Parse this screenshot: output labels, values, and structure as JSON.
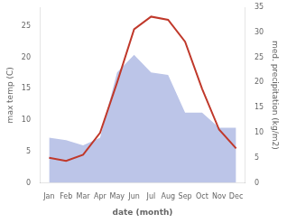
{
  "chart_data": {
    "type": "line",
    "xlabel": "date (month)",
    "ylabel": "max temp (C)",
    "y2label": "med. precipitation (kg/m2)",
    "categories": [
      "Jan",
      "Feb",
      "Mar",
      "Apr",
      "May",
      "Jun",
      "Jul",
      "Aug",
      "Sep",
      "Oct",
      "Nov",
      "Dec"
    ],
    "series": [
      {
        "type": "area",
        "axis": "y2",
        "color": "#bcc5e8",
        "values": [
          9.0,
          8.5,
          7.5,
          9.0,
          22.0,
          25.5,
          22.0,
          21.5,
          14.0,
          14.0,
          11.0,
          11.0
        ]
      },
      {
        "type": "line",
        "color": "#c0392b",
        "values": [
          4.0,
          3.5,
          4.5,
          8.0,
          16.0,
          24.5,
          26.5,
          26.0,
          22.5,
          15.0,
          8.5,
          5.5
        ]
      }
    ],
    "ylim": [
      0,
      28
    ],
    "yticks": [
      0,
      5,
      10,
      15,
      20,
      25
    ],
    "y2lim": [
      0,
      35
    ],
    "y2ticks": [
      0,
      5,
      10,
      15,
      20,
      25,
      30,
      35
    ],
    "grid": false
  }
}
